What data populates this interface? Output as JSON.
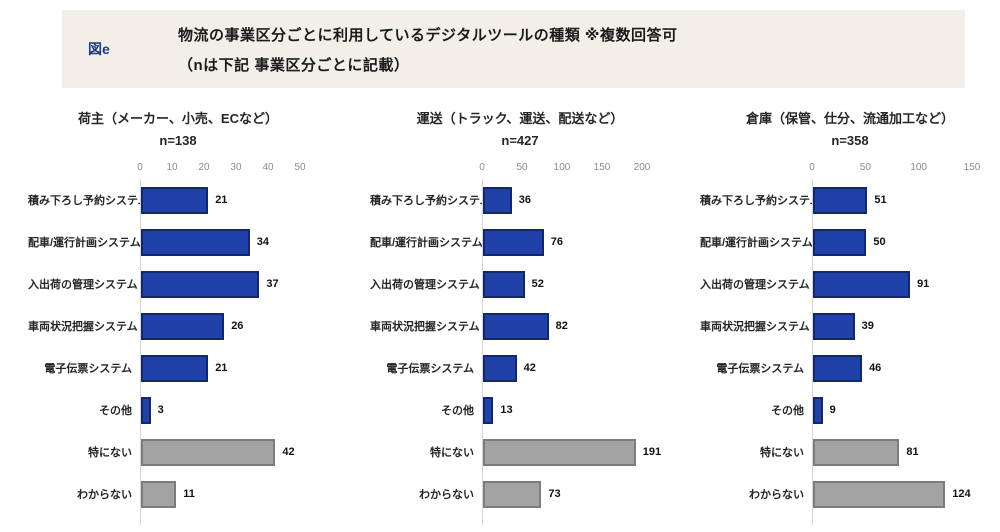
{
  "header": {
    "tag": "図e",
    "title_line1": "物流の事業区分ごとに利用しているデジタルツールの種類 ※複数回答可",
    "title_line2": "（nは下記 事業区分ごとに記載）"
  },
  "colors": {
    "header_bg": "#f2efe9",
    "tag_blue": "#1e3a8a",
    "bar_blue": "#1f41a8",
    "bar_blue_border": "#13266e",
    "bar_gray": "#a3a3a3",
    "bar_gray_border": "#7c7c7c"
  },
  "chart_data": [
    {
      "type": "bar",
      "orientation": "horizontal",
      "title": "荷主（メーカー、小売、ECなど）",
      "n_label": "n=138",
      "categories": [
        "積み下ろし予約システム",
        "配車/運行計画システム",
        "入出荷の管理システム",
        "車両状況把握システム",
        "電子伝票システム",
        "その他",
        "特にない",
        "わからない"
      ],
      "values": [
        21,
        34,
        37,
        26,
        21,
        3,
        42,
        11
      ],
      "bar_colors": [
        "blue",
        "blue",
        "blue",
        "blue",
        "blue",
        "blue",
        "gray",
        "gray"
      ],
      "ticks": [
        0,
        10,
        20,
        30,
        40,
        50
      ],
      "xmax": 50,
      "grid": false,
      "legend": null
    },
    {
      "type": "bar",
      "orientation": "horizontal",
      "title": "運送（トラック、運送、配送など）",
      "n_label": "n=427",
      "categories": [
        "積み下ろし予約システム",
        "配車/運行計画システム",
        "入出荷の管理システム",
        "車両状況把握システム",
        "電子伝票システム",
        "その他",
        "特にない",
        "わからない"
      ],
      "values": [
        36,
        76,
        52,
        82,
        42,
        13,
        191,
        73
      ],
      "bar_colors": [
        "blue",
        "blue",
        "blue",
        "blue",
        "blue",
        "blue",
        "gray",
        "gray"
      ],
      "ticks": [
        0,
        50,
        100,
        150,
        200
      ],
      "xmax": 200,
      "grid": false,
      "legend": null
    },
    {
      "type": "bar",
      "orientation": "horizontal",
      "title": "倉庫（保管、仕分、流通加工など）",
      "n_label": "n=358",
      "categories": [
        "積み下ろし予約システム",
        "配車/運行計画システム",
        "入出荷の管理システム",
        "車両状況把握システム",
        "電子伝票システム",
        "その他",
        "特にない",
        "わからない"
      ],
      "values": [
        51,
        50,
        91,
        39,
        46,
        9,
        81,
        124
      ],
      "bar_colors": [
        "blue",
        "blue",
        "blue",
        "blue",
        "blue",
        "blue",
        "gray",
        "gray"
      ],
      "ticks": [
        0,
        50,
        100,
        150
      ],
      "xmax": 150,
      "grid": false,
      "legend": null
    }
  ]
}
